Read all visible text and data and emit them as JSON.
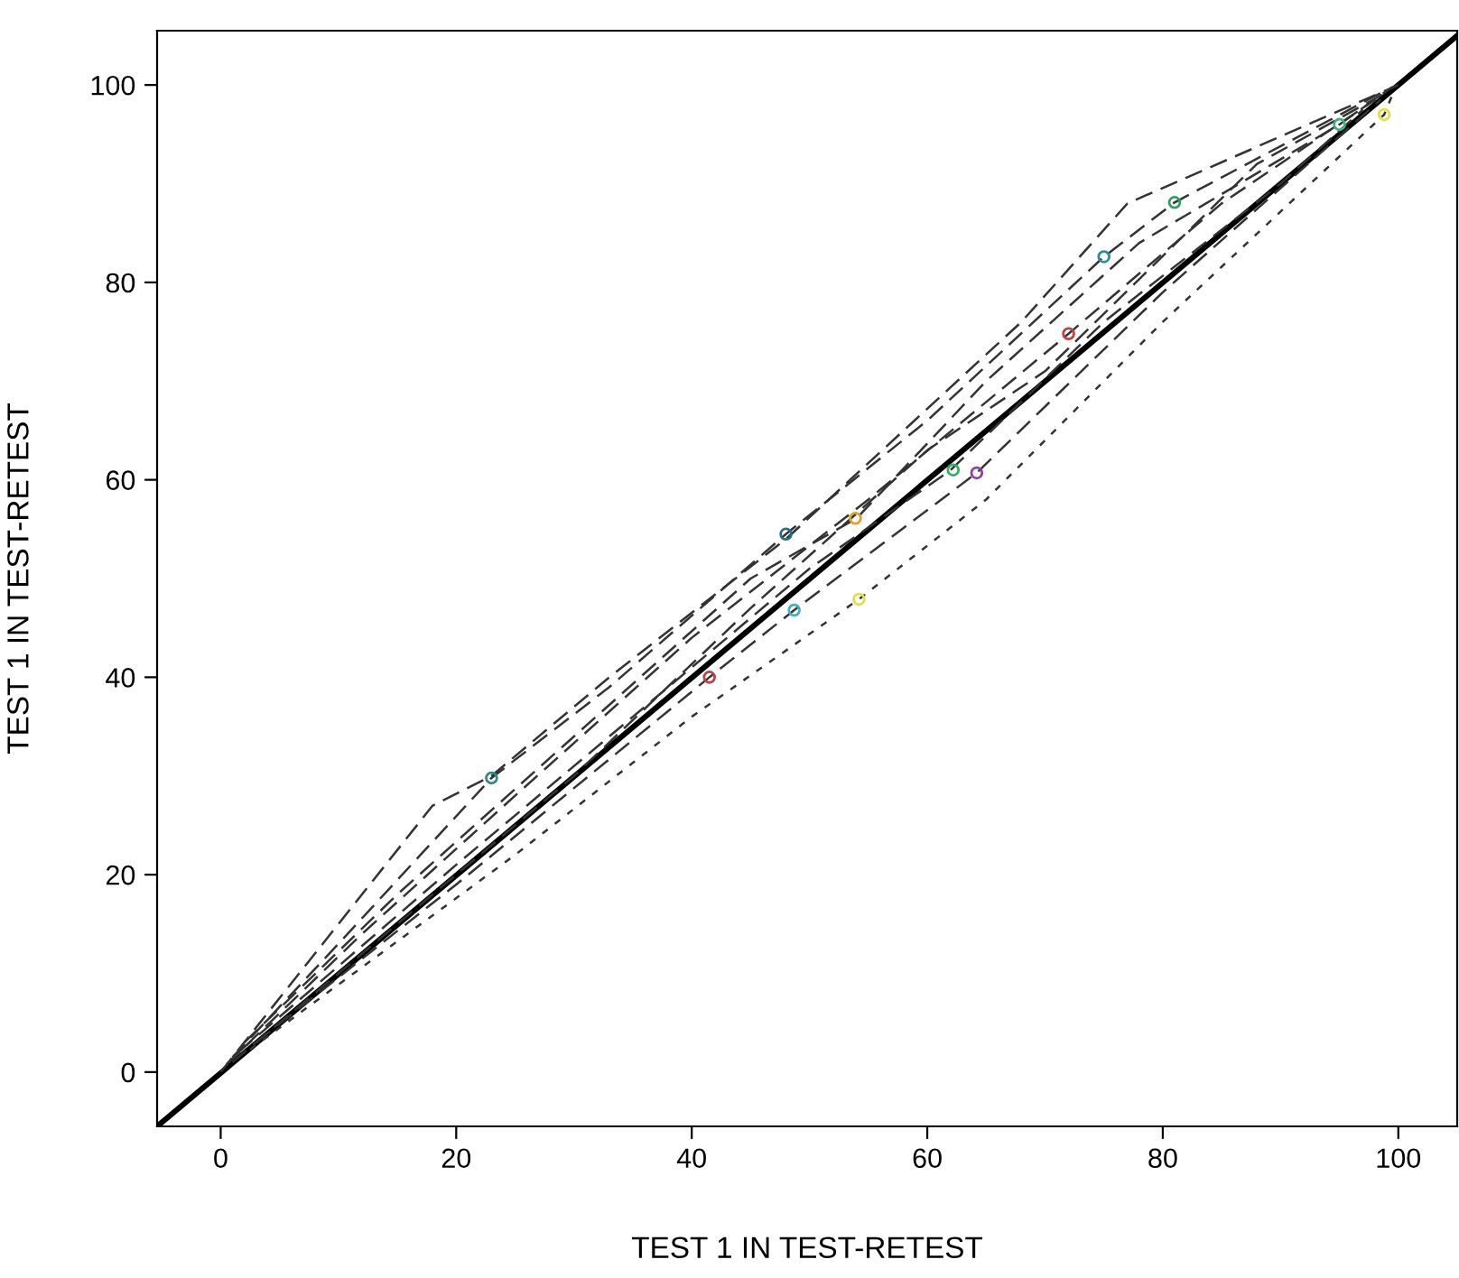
{
  "chart_data": {
    "type": "line",
    "xlabel": "TEST 1 IN TEST-RETEST",
    "ylabel": "TEST 1 IN TEST-RETEST",
    "xlim": [
      -5.4,
      105
    ],
    "ylim": [
      -5.5,
      105.5
    ],
    "xticks": [
      0,
      20,
      40,
      60,
      80,
      100
    ],
    "yticks": [
      0,
      20,
      40,
      60,
      80,
      100
    ],
    "grid": false,
    "legend": false,
    "marker": "none",
    "series": [
      {
        "color": "#000000",
        "line_style": "solid",
        "x": [
          -5.4,
          105
        ],
        "values": [
          -5.5,
          105
        ]
      },
      {
        "color": "#333333",
        "line_style": "dashed",
        "x": [
          0,
          18,
          23,
          33,
          48,
          68,
          77,
          100
        ],
        "values": [
          0,
          27,
          30,
          40,
          54,
          76,
          88,
          100
        ]
      },
      {
        "color": "#333333",
        "line_style": "dashed",
        "x": [
          1,
          10,
          23,
          33,
          48,
          60,
          75,
          81,
          99
        ],
        "values": [
          1.5,
          13,
          29.8,
          39,
          54.5,
          66,
          82.6,
          88.1,
          99.5
        ]
      },
      {
        "color": "#333333",
        "line_style": "dashed",
        "x": [
          2,
          15,
          30,
          45,
          54,
          65,
          78,
          95,
          99.5
        ],
        "values": [
          3,
          18,
          34,
          50,
          56.1,
          70,
          84,
          96,
          99.8
        ]
      },
      {
        "color": "#333333",
        "line_style": "dashed",
        "x": [
          0.5,
          12,
          25,
          40,
          55,
          72,
          85,
          98
        ],
        "values": [
          0.8,
          14,
          28,
          44,
          58,
          74.8,
          88,
          98.5
        ]
      },
      {
        "color": "#333333",
        "line_style": "dashed",
        "x": [
          1.5,
          20,
          35,
          50,
          62,
          75,
          90,
          97
        ],
        "values": [
          2,
          21,
          36,
          51,
          61,
          76,
          90,
          97.5
        ]
      },
      {
        "color": "#333333",
        "line_style": "dashed",
        "x": [
          3,
          20,
          41.5,
          48.7,
          64.2,
          80,
          98.5
        ],
        "values": [
          3,
          19,
          40,
          46.8,
          60.7,
          79,
          98.5
        ]
      },
      {
        "color": "#333333",
        "line_style": "dotted",
        "x": [
          2.5,
          25,
          40,
          54.2,
          65,
          80,
          98.8,
          99.7
        ],
        "values": [
          2.3,
          22,
          36,
          47.9,
          58,
          76,
          97,
          99.6
        ]
      },
      {
        "color": "#333333",
        "line_style": "dashed",
        "x": [
          1,
          30,
          45,
          60,
          70,
          88,
          99.2
        ],
        "values": [
          1,
          30,
          47,
          63,
          71,
          92,
          99.4
        ]
      },
      {
        "type": "scatter",
        "marker": "circle",
        "colors": [
          "#2a8a8a",
          "#2a6a8a",
          "#2aa060",
          "#2a8aa0",
          "#c04040",
          "#30b060",
          "#9040a0",
          "#c04040",
          "#40b0c0",
          "#e0e040",
          "#e0a030",
          "#e0e040",
          "#40b080"
        ],
        "x": [
          23,
          48,
          81,
          75,
          72,
          62.2,
          64.2,
          41.5,
          48.7,
          54.2,
          53.9,
          98.8,
          95
        ],
        "values": [
          29.8,
          54.5,
          88.1,
          82.6,
          74.8,
          61,
          60.7,
          40,
          46.8,
          47.9,
          56.1,
          97,
          96
        ]
      }
    ]
  }
}
